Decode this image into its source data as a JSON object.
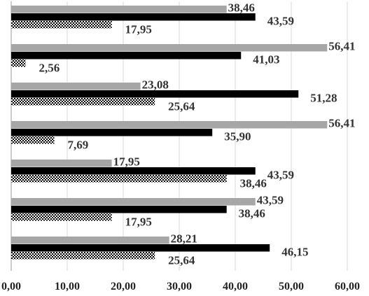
{
  "chart_data": {
    "type": "bar",
    "orientation": "horizontal",
    "title": "",
    "xlabel": "",
    "ylabel": "",
    "xlim": [
      0,
      60
    ],
    "x_ticks": [
      "0,00",
      "10,00",
      "20,00",
      "30,00",
      "40,00",
      "50,00",
      "60,00"
    ],
    "grid": true,
    "legend": "none",
    "group_count": 7,
    "series": [
      {
        "color": "#a6a6a6",
        "pattern": "solid",
        "values": [
          38.46,
          56.41,
          23.08,
          56.41,
          17.95,
          43.59,
          28.21
        ],
        "labels": [
          "38,46",
          "56,41",
          "23,08",
          "56,41",
          "17,95",
          "43,59",
          "28,21"
        ]
      },
      {
        "color": "#000000",
        "pattern": "solid",
        "values": [
          43.59,
          41.03,
          51.28,
          35.9,
          43.59,
          38.46,
          46.15
        ],
        "labels": [
          "43,59",
          "41,03",
          "51,28",
          "35,90",
          "43,59",
          "38,46",
          "46,15"
        ]
      },
      {
        "color": "#000000",
        "pattern": "checkerboard",
        "values": [
          17.95,
          2.56,
          25.64,
          7.69,
          38.46,
          17.95,
          25.64
        ],
        "labels": [
          "17,95",
          "2,56",
          "25,64",
          "7,69",
          "38,46",
          "17,95",
          "25,64"
        ]
      }
    ]
  }
}
